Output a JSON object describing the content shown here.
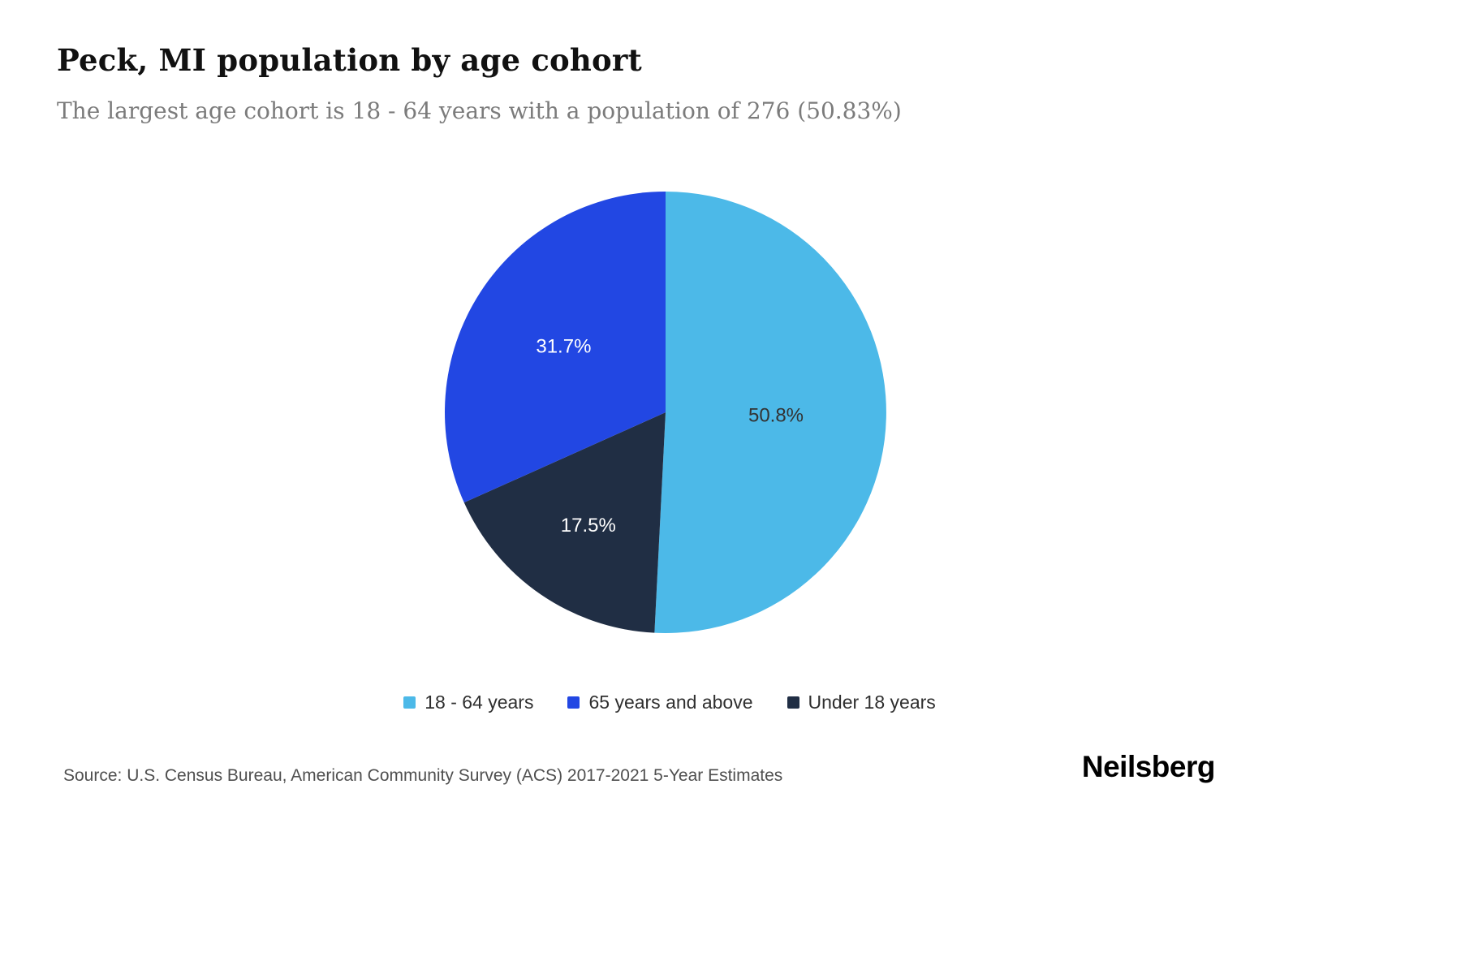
{
  "header": {
    "title": "Peck, MI population by age cohort",
    "subtitle": "The largest age cohort is 18 - 64 years with a population of 276 (50.83%)"
  },
  "chart_data": {
    "type": "pie",
    "title": "Peck, MI population by age cohort",
    "subtitle": "The largest age cohort is 18 - 64 years with a population of 276 (50.83%)",
    "start_angle": 0,
    "direction": "clockwise",
    "legend_position": "bottom",
    "slices": [
      {
        "label": "18 - 64 years",
        "value": 50.8,
        "label_text": "50.8%",
        "color": "#4cb9e8",
        "label_color": "#333333",
        "label_radius": 0.5
      },
      {
        "label": "Under 18 years",
        "value": 17.5,
        "label_text": "17.5%",
        "color": "#202e44",
        "label_color": "#ffffff",
        "label_radius": 0.62
      },
      {
        "label": "65 years and above",
        "value": 31.7,
        "label_text": "31.7%",
        "color": "#2247e3",
        "label_color": "#ffffff",
        "label_radius": 0.55
      }
    ]
  },
  "legend": {
    "items": [
      {
        "label": "18 - 64 years",
        "color": "#4cb9e8"
      },
      {
        "label": "65 years and above",
        "color": "#2247e3"
      },
      {
        "label": "Under 18 years",
        "color": "#202e44"
      }
    ]
  },
  "footer": {
    "source": "Source: U.S. Census Bureau, American Community Survey (ACS) 2017-2021 5-Year Estimates",
    "brand": "Neilsberg"
  }
}
